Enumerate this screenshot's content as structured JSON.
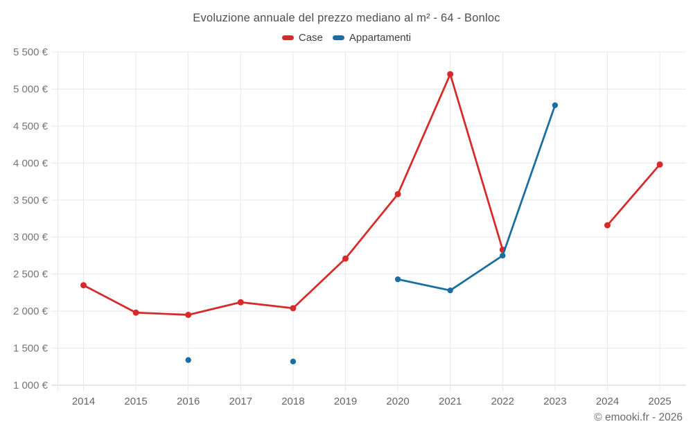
{
  "title": "Evoluzione annuale del prezzo mediano al m² - 64 - Bonloc",
  "footer": {
    "credit": "© emooki.fr - 2026"
  },
  "colors": {
    "case_red": "#d62b2b",
    "appartamenti_blue": "#1a6fa0",
    "grid": "#e8e8e8",
    "axis_bottom": "#d2d2d2",
    "y_label": "#757575",
    "x_label": "#646464",
    "title_text": "#4d4d4d",
    "footer_text": "#6a6a6a"
  },
  "chart_data": {
    "type": "line",
    "title": "Evoluzione annuale del prezzo mediano al m² - 64 - Bonloc",
    "categories": [
      2014,
      2015,
      2016,
      2017,
      2018,
      2019,
      2020,
      2021,
      2022,
      2023,
      2024,
      2025
    ],
    "series": [
      {
        "name": "Case",
        "color": "#d62b2b",
        "values": [
          2350,
          1980,
          1950,
          2120,
          2040,
          2710,
          3580,
          5200,
          2830,
          null,
          3160,
          3980
        ]
      },
      {
        "name": "Appartamenti",
        "color": "#1a6fa0",
        "values": [
          null,
          null,
          1340,
          null,
          1320,
          null,
          2430,
          2280,
          2750,
          4780,
          null,
          null
        ]
      }
    ],
    "xlabel": "",
    "ylabel": "",
    "ylim": [
      1000,
      5500
    ],
    "ytick_step": 500,
    "y_ticks": [
      1000,
      1500,
      2000,
      2500,
      3000,
      3500,
      4000,
      4500,
      5000,
      5500
    ],
    "y_tick_labels": [
      "1 000 €",
      "1 500 €",
      "2 000 €",
      "2 500 €",
      "3 000 €",
      "3 500 €",
      "4 000 €",
      "4 500 €",
      "5 000 €",
      "5 500 €"
    ],
    "grid": true,
    "legend_position": "top",
    "gaps_note": "null = no data point for that year"
  }
}
